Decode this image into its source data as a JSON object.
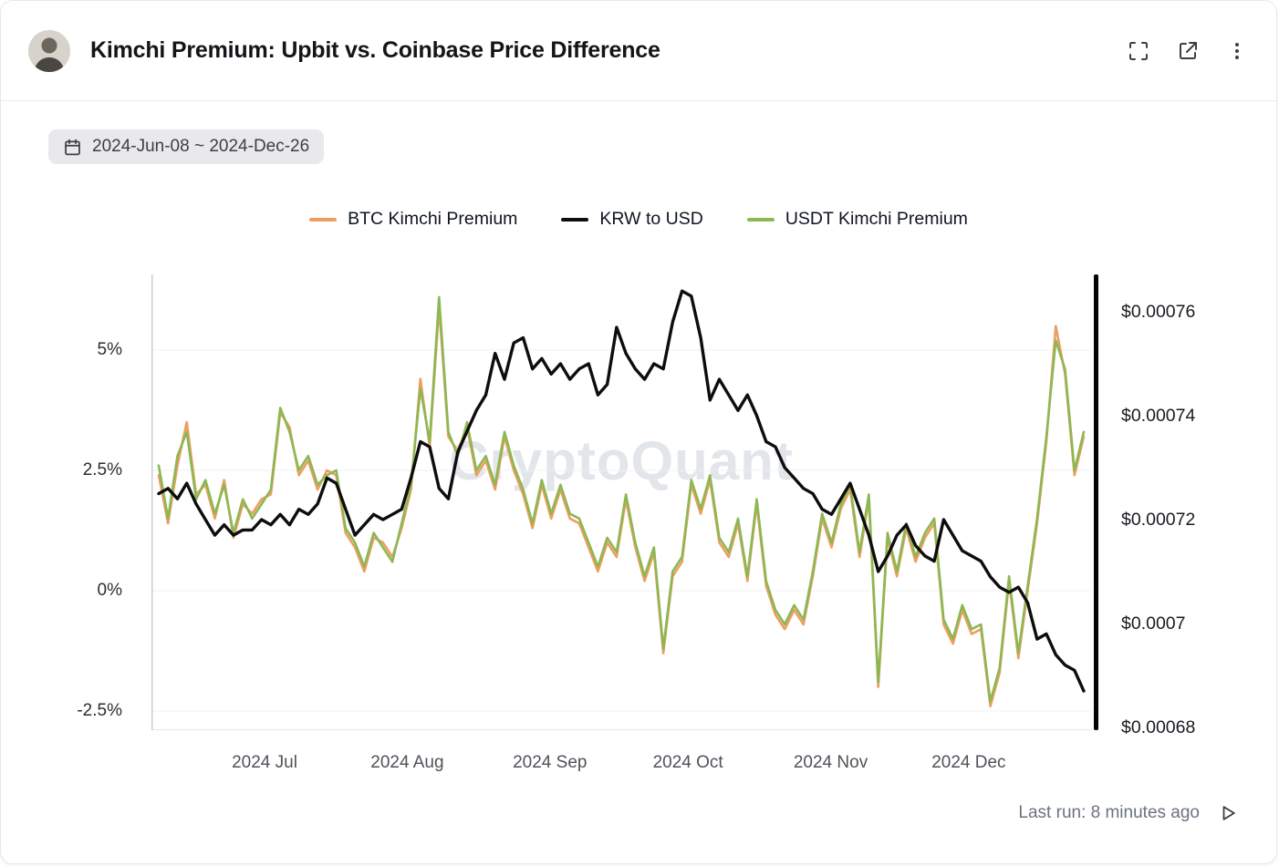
{
  "header": {
    "title": "Kimchi Premium: Upbit vs. Coinbase Price Difference"
  },
  "date_range": {
    "label": "2024-Jun-08 ~ 2024-Dec-26"
  },
  "watermark": "CryptoQuant",
  "footer": {
    "last_run": "Last run: 8 minutes ago"
  },
  "colors": {
    "btc": "#ef9d5f",
    "krw": "#0d0d0d",
    "usdt": "#8cb854",
    "grid": "#eef0f3"
  },
  "chart_data": {
    "type": "line",
    "title": "Kimchi Premium: Upbit vs. Coinbase Price Difference",
    "x_range": [
      "2024-06-08",
      "2024-12-26"
    ],
    "legend_position": "top-center",
    "grid": "horizontal-faint",
    "left_axis": {
      "unit": "%",
      "range": [
        -2.9,
        6.6
      ],
      "ticks": [
        {
          "label": "5%",
          "value": 5
        },
        {
          "label": "2.5%",
          "value": 2.5
        },
        {
          "label": "0%",
          "value": 0
        },
        {
          "label": "-2.5%",
          "value": -2.5
        }
      ]
    },
    "right_axis": {
      "unit": "USD per KRW",
      "range": [
        0.000679,
        0.000767
      ],
      "ticks": [
        {
          "label": "$0.00076",
          "value": 0.00076
        },
        {
          "label": "$0.00074",
          "value": 0.00074
        },
        {
          "label": "$0.00072",
          "value": 0.00072
        },
        {
          "label": "$0.0007",
          "value": 0.0007
        },
        {
          "label": "$0.00068",
          "value": 0.00068
        }
      ]
    },
    "x_axis": {
      "total_days": 201,
      "ticks": [
        {
          "label": "2024 Jul",
          "day": 23
        },
        {
          "label": "2024 Aug",
          "day": 54
        },
        {
          "label": "2024 Sep",
          "day": 85
        },
        {
          "label": "2024 Oct",
          "day": 115
        },
        {
          "label": "2024 Nov",
          "day": 146
        },
        {
          "label": "2024 Dec",
          "day": 176
        }
      ]
    },
    "series": [
      {
        "name": "BTC Kimchi Premium",
        "color": "#ef9d5f",
        "axis": "left",
        "values": [
          2.4,
          1.4,
          2.6,
          3.5,
          2.0,
          2.2,
          1.5,
          2.3,
          1.1,
          1.8,
          1.6,
          1.9,
          2.0,
          3.7,
          3.4,
          2.4,
          2.7,
          2.1,
          2.5,
          2.4,
          1.2,
          0.9,
          0.4,
          1.1,
          1.0,
          0.7,
          1.3,
          2.1,
          4.4,
          3.0,
          5.9,
          3.2,
          2.9,
          3.4,
          2.4,
          2.7,
          2.1,
          3.2,
          2.5,
          2.0,
          1.3,
          2.2,
          1.5,
          2.1,
          1.5,
          1.4,
          0.9,
          0.4,
          1.0,
          0.7,
          1.9,
          0.9,
          0.2,
          0.8,
          -1.3,
          0.3,
          0.6,
          2.2,
          1.6,
          2.3,
          1.0,
          0.7,
          1.4,
          0.2,
          1.8,
          0.1,
          -0.5,
          -0.8,
          -0.4,
          -0.7,
          0.3,
          1.5,
          0.9,
          1.7,
          2.1,
          0.7,
          1.9,
          -2.0,
          1.1,
          0.3,
          1.3,
          0.6,
          1.1,
          1.4,
          -0.7,
          -1.1,
          -0.4,
          -0.9,
          -0.8,
          -2.4,
          -1.7,
          0.2,
          -1.4,
          0.0,
          1.4,
          3.1,
          5.5,
          4.5,
          2.4,
          3.2
        ]
      },
      {
        "name": "KRW to USD",
        "color": "#0d0d0d",
        "axis": "right",
        "values": [
          0.000725,
          0.000726,
          0.000724,
          0.000727,
          0.000723,
          0.00072,
          0.000717,
          0.000719,
          0.000717,
          0.000718,
          0.000718,
          0.00072,
          0.000719,
          0.000721,
          0.000719,
          0.000722,
          0.000721,
          0.000723,
          0.000728,
          0.000727,
          0.000722,
          0.000717,
          0.000719,
          0.000721,
          0.00072,
          0.000721,
          0.000722,
          0.000728,
          0.000735,
          0.000734,
          0.000726,
          0.000724,
          0.000733,
          0.000737,
          0.000741,
          0.000744,
          0.000752,
          0.000747,
          0.000754,
          0.000755,
          0.000749,
          0.000751,
          0.000748,
          0.00075,
          0.000747,
          0.000749,
          0.00075,
          0.000744,
          0.000746,
          0.000757,
          0.000752,
          0.000749,
          0.000747,
          0.00075,
          0.000749,
          0.000758,
          0.000764,
          0.000763,
          0.000755,
          0.000743,
          0.000747,
          0.000744,
          0.000741,
          0.000744,
          0.00074,
          0.000735,
          0.000734,
          0.00073,
          0.000728,
          0.000726,
          0.000725,
          0.000722,
          0.000721,
          0.000724,
          0.000727,
          0.000722,
          0.000717,
          0.00071,
          0.000713,
          0.000717,
          0.000719,
          0.000715,
          0.000713,
          0.000712,
          0.00072,
          0.000717,
          0.000714,
          0.000713,
          0.000712,
          0.000709,
          0.000707,
          0.000706,
          0.000707,
          0.000704,
          0.000697,
          0.000698,
          0.000694,
          0.000692,
          0.000691,
          0.000687
        ]
      },
      {
        "name": "USDT Kimchi Premium",
        "color": "#8cb854",
        "axis": "left",
        "values": [
          2.6,
          1.5,
          2.8,
          3.3,
          1.9,
          2.3,
          1.6,
          2.2,
          1.2,
          1.9,
          1.5,
          1.8,
          2.1,
          3.8,
          3.3,
          2.5,
          2.8,
          2.2,
          2.4,
          2.5,
          1.3,
          1.0,
          0.5,
          1.2,
          0.9,
          0.6,
          1.4,
          2.2,
          4.2,
          3.1,
          6.1,
          3.3,
          2.8,
          3.5,
          2.5,
          2.8,
          2.2,
          3.3,
          2.6,
          2.1,
          1.4,
          2.3,
          1.6,
          2.2,
          1.6,
          1.5,
          1.0,
          0.5,
          1.1,
          0.8,
          2.0,
          1.0,
          0.3,
          0.9,
          -1.2,
          0.4,
          0.7,
          2.3,
          1.7,
          2.4,
          1.1,
          0.8,
          1.5,
          0.3,
          1.9,
          0.2,
          -0.4,
          -0.7,
          -0.3,
          -0.6,
          0.4,
          1.6,
          1.0,
          1.8,
          2.2,
          0.8,
          2.0,
          -1.9,
          1.2,
          0.4,
          1.4,
          0.7,
          1.2,
          1.5,
          -0.6,
          -1.0,
          -0.3,
          -0.8,
          -0.7,
          -2.3,
          -1.6,
          0.3,
          -1.3,
          0.1,
          1.5,
          3.2,
          5.2,
          4.6,
          2.5,
          3.3
        ]
      }
    ]
  }
}
